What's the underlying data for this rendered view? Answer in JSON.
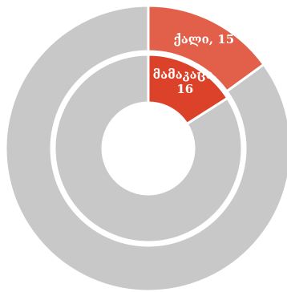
{
  "chart_data": {
    "type": "pie",
    "subtype": "nested-donut",
    "rings": [
      {
        "name": "",
        "level": "outer",
        "slices": [
          {
            "label": "ქალი",
            "value": 15,
            "color": "#e2604a",
            "text": "ქალი, 15"
          },
          {
            "label": "",
            "value": 85,
            "color": "#c8c8c8",
            "text": ""
          }
        ]
      },
      {
        "name": "",
        "level": "inner",
        "slices": [
          {
            "label": "მამაკაცი",
            "value": 16,
            "color": "#dc4129",
            "text_lines": [
              "მამაკაცი,",
              "16"
            ]
          },
          {
            "label": "",
            "value": 84,
            "color": "#c8c8c8",
            "text": ""
          }
        ]
      }
    ],
    "start_angle_deg": 0,
    "direction": "clockwise",
    "title": "",
    "legend": "none"
  }
}
